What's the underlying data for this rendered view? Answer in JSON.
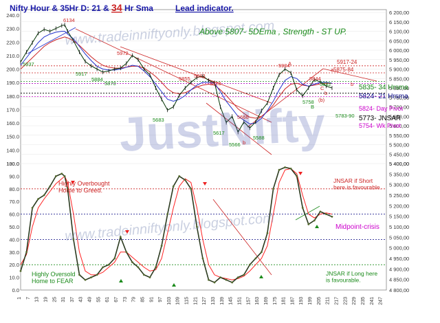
{
  "title": {
    "part1": "Nifty Hour & 35Hr D: 21 & ",
    "part2": "34",
    "part3": " Hr Sma",
    "lead": "Lead indicator."
  },
  "watermark": {
    "url": "www.tradeinniftyonly.blogspot.com",
    "brand": "JustNifty"
  },
  "headline": "Above 5807-  5DEma ,  Strength - ST  UP.",
  "colors": {
    "price": "#003300",
    "sma21": "#2233cc",
    "sma34": "#cc2222",
    "osc": "#2b3a1f",
    "signal": "#ff2222",
    "green": "#1a8a1a",
    "magenta": "#cc00cc",
    "navy": "#000080"
  },
  "chart_data": [
    {
      "type": "line",
      "name": "price-panel",
      "y_right_ticks": [
        5400,
        5450,
        5500,
        5550,
        5600,
        5650,
        5700,
        5750,
        5800,
        5850,
        5900,
        5950,
        6000,
        6050,
        6100,
        6150,
        6200
      ],
      "y_left_ticks": [
        130,
        140,
        150,
        160,
        170,
        180,
        190,
        200,
        210,
        220,
        230,
        240
      ],
      "ylim": [
        5400,
        6200
      ],
      "x": [
        1,
        5,
        9,
        13,
        17,
        21,
        25,
        29,
        31,
        33,
        37,
        41,
        45,
        49,
        53,
        57,
        61,
        65,
        69,
        73,
        77,
        81,
        85,
        89,
        93,
        97,
        101,
        105,
        109,
        113,
        117,
        121,
        125,
        129,
        133,
        137,
        141,
        145,
        149,
        153,
        157,
        161,
        165,
        169,
        173,
        177,
        181,
        185,
        189,
        193,
        197,
        201,
        205,
        209,
        213
      ],
      "price": [
        5937,
        5990,
        6040,
        6090,
        6110,
        6100,
        6115,
        6130,
        6134,
        6100,
        6050,
        5990,
        5940,
        5917,
        5900,
        5884,
        5890,
        5900,
        5905,
        5930,
        5972,
        5950,
        5900,
        5870,
        5800,
        5740,
        5683,
        5700,
        5760,
        5800,
        5830,
        5855,
        5863,
        5840,
        5828,
        5700,
        5617,
        5650,
        5566,
        5620,
        5588,
        5620,
        5680,
        5720,
        5800,
        5870,
        5900,
        5880,
        5790,
        5758,
        5800,
        5844,
        5832,
        5810,
        5800
      ],
      "sma21": [
        5920,
        5960,
        6000,
        6040,
        6070,
        6085,
        6095,
        6100,
        6100,
        6085,
        6060,
        6020,
        5980,
        5945,
        5915,
        5900,
        5895,
        5895,
        5900,
        5910,
        5920,
        5915,
        5890,
        5860,
        5820,
        5780,
        5740,
        5730,
        5740,
        5760,
        5790,
        5815,
        5830,
        5830,
        5825,
        5780,
        5730,
        5690,
        5650,
        5630,
        5610,
        5615,
        5640,
        5680,
        5730,
        5790,
        5840,
        5860,
        5850,
        5820,
        5810,
        5820,
        5830,
        5830,
        5825
      ],
      "sma34": [
        5900,
        5930,
        5960,
        5990,
        6020,
        6040,
        6055,
        6065,
        6070,
        6065,
        6050,
        6025,
        5995,
        5965,
        5940,
        5920,
        5910,
        5905,
        5905,
        5910,
        5915,
        5915,
        5905,
        5885,
        5860,
        5830,
        5795,
        5775,
        5770,
        5775,
        5790,
        5805,
        5815,
        5820,
        5815,
        5790,
        5760,
        5725,
        5690,
        5665,
        5645,
        5640,
        5650,
        5675,
        5710,
        5755,
        5795,
        5820,
        5825,
        5815,
        5810,
        5815,
        5822,
        5825,
        5824
      ],
      "levels": [
        {
          "label": "5917-24",
          "value": 5917,
          "color": "#cc2222"
        },
        {
          "label": "5875-84",
          "value": 5880,
          "color": "#cc2222"
        },
        {
          "label": "5835- 34 Hrsma",
          "value": 5835,
          "color": "#1a8a1a"
        },
        {
          "label": "5824- 21 Hrsma",
          "value": 5824,
          "color": "#000080"
        },
        {
          "label": "5824- Day Pivot",
          "value": 5824,
          "color": "#cc00cc"
        },
        {
          "label": "5773- JNSAR",
          "value": 5773,
          "color": "#000000"
        },
        {
          "label": "5754- Wk Pivot",
          "value": 5754,
          "color": "#cc00cc"
        }
      ],
      "annotations": [
        "5937",
        "6134",
        "5917",
        "5884",
        "5870",
        "5972",
        "5683",
        "5855",
        "5863",
        "5828",
        "5617",
        "5566",
        "5588",
        "5666",
        "5904",
        "5844",
        "5832",
        "5758",
        "5783-90",
        "A",
        "B",
        "C",
        "a",
        "b",
        "b",
        "(b)",
        "b"
      ]
    },
    {
      "type": "line",
      "name": "oscillator-panel",
      "y_ticks": [
        0,
        10,
        20,
        30,
        40,
        50,
        60,
        70,
        80,
        90,
        100
      ],
      "ylim": [
        0,
        100
      ],
      "right_ticks": [
        4800,
        4850,
        4900,
        4950,
        5000,
        5050,
        5100,
        5150,
        5200,
        5250,
        5300,
        5350,
        5400
      ],
      "x": [
        1,
        5,
        9,
        13,
        17,
        21,
        25,
        29,
        31,
        33,
        37,
        41,
        45,
        49,
        53,
        57,
        61,
        65,
        69,
        73,
        77,
        81,
        85,
        89,
        93,
        97,
        101,
        105,
        109,
        113,
        117,
        121,
        125,
        129,
        133,
        137,
        141,
        145,
        149,
        153,
        157,
        161,
        165,
        169,
        173,
        177,
        181,
        185,
        189,
        193,
        197,
        201,
        205,
        209,
        213
      ],
      "osc": [
        15,
        30,
        65,
        72,
        75,
        82,
        90,
        92,
        90,
        80,
        40,
        12,
        8,
        10,
        12,
        18,
        20,
        25,
        42,
        30,
        22,
        18,
        12,
        10,
        18,
        35,
        60,
        82,
        90,
        87,
        80,
        50,
        25,
        8,
        6,
        10,
        8,
        6,
        10,
        12,
        20,
        25,
        30,
        45,
        80,
        95,
        97,
        96,
        90,
        65,
        52,
        55,
        62,
        60,
        58
      ],
      "signal": [
        20,
        28,
        50,
        65,
        72,
        78,
        84,
        88,
        90,
        85,
        60,
        30,
        15,
        12,
        12,
        14,
        18,
        22,
        30,
        30,
        26,
        22,
        18,
        15,
        16,
        25,
        45,
        65,
        82,
        88,
        85,
        65,
        40,
        20,
        12,
        10,
        9,
        8,
        9,
        11,
        15,
        20,
        25,
        35,
        60,
        85,
        95,
        96,
        92,
        75,
        60,
        57,
        60,
        61,
        60
      ],
      "levels": [
        {
          "value": 80,
          "color": "#cc2222"
        },
        {
          "value": 60,
          "color": "#000080"
        },
        {
          "value": 40,
          "color": "#000080"
        },
        {
          "value": 20,
          "color": "#1a8a1a"
        }
      ],
      "annotations": [
        {
          "label": "Highly Overbought \nHome to Greed.",
          "color": "#cc2222"
        },
        {
          "label": "JNSAR  if Short \nhere is favourable.",
          "color": "#cc2222"
        },
        {
          "label": "Midpoint-crisis",
          "color": "#cc00cc"
        },
        {
          "label": "Highly Oversold \nHome to FEAR",
          "color": "#1a8a1a"
        },
        {
          "label": "JNSAR  if Long here \nis favourable.",
          "color": "#1a8a1a"
        }
      ]
    }
  ],
  "x_ticks": [
    "1",
    "7",
    "13",
    "19",
    "25",
    "31",
    "37",
    "43",
    "49",
    "55",
    "61",
    "67",
    "73",
    "79",
    "85",
    "91",
    "97",
    "103",
    "109",
    "115",
    "121",
    "127",
    "133",
    "139",
    "145",
    "151",
    "157",
    "163",
    "169",
    "175",
    "181",
    "187",
    "193",
    "199",
    "205",
    "211",
    "217",
    "223",
    "229",
    "235",
    "241",
    "247"
  ]
}
